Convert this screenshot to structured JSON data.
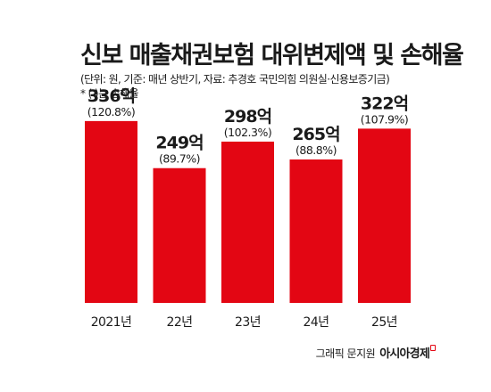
{
  "chart_data": {
    "type": "bar",
    "title": "신보 매출채권보험 대위변제액 및 손해율",
    "subtitle": "(단위: 원, 기준: 매년 상반기, 자료: 추경호 국민의힘 의원실·신용보증기금)",
    "note": "* ( )는 손해율",
    "categories": [
      "2021년",
      "22년",
      "23년",
      "24년",
      "25년"
    ],
    "values": [
      336,
      249,
      298,
      265,
      322
    ],
    "value_labels": [
      "336억",
      "249억",
      "298억",
      "265억",
      "322억"
    ],
    "loss_ratio_labels": [
      "(120.8%)",
      "(89.7%)",
      "(102.3%)",
      "(88.8%)",
      "(107.9%)"
    ],
    "loss_ratios": [
      120.8,
      89.7,
      102.3,
      88.8,
      107.9
    ],
    "bar_color": "#e30613",
    "grid": false
  },
  "credit": {
    "who": "그래픽 문지원",
    "brand": "아시아경제"
  }
}
